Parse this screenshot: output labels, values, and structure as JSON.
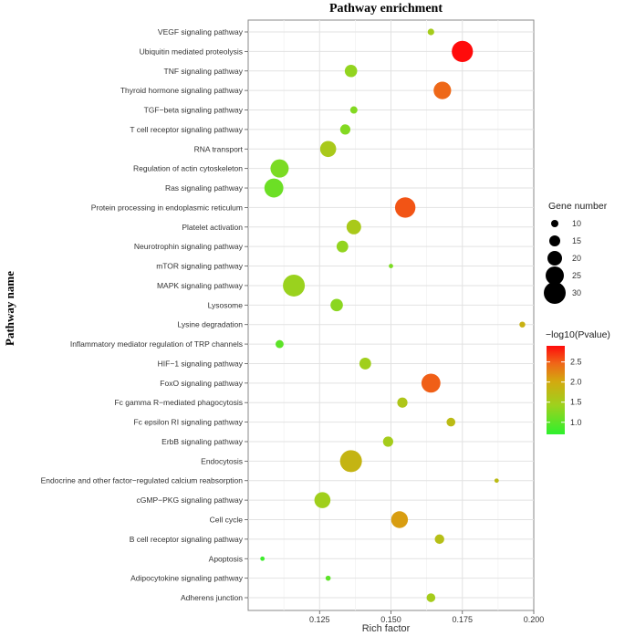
{
  "chart_data": {
    "type": "scatter",
    "title": "Pathway enrichment",
    "xlabel": "Rich factor",
    "ylabel": "Pathway name",
    "xlim": [
      0.1,
      0.2
    ],
    "xticks": [
      "0.125",
      "0.150",
      "0.175",
      "0.200"
    ],
    "grid": true,
    "size_legend": {
      "title": "Gene number",
      "values": [
        10,
        15,
        20,
        25,
        30
      ]
    },
    "color_legend": {
      "title": "−log10(Pvalue)",
      "ticks": [
        "2.5",
        "2.0",
        "1.5",
        "1.0"
      ],
      "range": [
        0.7,
        2.9
      ]
    },
    "points": [
      {
        "pathway": "VEGF signaling pathway",
        "rich_factor": 0.164,
        "gene_number": 9,
        "neg_log10_p": 1.5
      },
      {
        "pathway": "Ubiquitin mediated proteolysis",
        "rich_factor": 0.175,
        "gene_number": 29,
        "neg_log10_p": 2.95
      },
      {
        "pathway": "TNF signaling pathway",
        "rich_factor": 0.136,
        "gene_number": 17,
        "neg_log10_p": 1.35
      },
      {
        "pathway": "Thyroid hormone signaling pathway",
        "rich_factor": 0.168,
        "gene_number": 24,
        "neg_log10_p": 2.45
      },
      {
        "pathway": "TGF−beta signaling pathway",
        "rich_factor": 0.137,
        "gene_number": 10,
        "neg_log10_p": 1.25
      },
      {
        "pathway": "T cell receptor signaling pathway",
        "rich_factor": 0.134,
        "gene_number": 14,
        "neg_log10_p": 1.25
      },
      {
        "pathway": "RNA transport",
        "rich_factor": 0.128,
        "gene_number": 22,
        "neg_log10_p": 1.55
      },
      {
        "pathway": "Regulation of actin cytoskeleton",
        "rich_factor": 0.111,
        "gene_number": 25,
        "neg_log10_p": 1.2
      },
      {
        "pathway": "Ras signaling pathway",
        "rich_factor": 0.109,
        "gene_number": 26,
        "neg_log10_p": 1.1
      },
      {
        "pathway": "Protein processing in endoplasmic reticulum",
        "rich_factor": 0.155,
        "gene_number": 28,
        "neg_log10_p": 2.55
      },
      {
        "pathway": "Platelet activation",
        "rich_factor": 0.137,
        "gene_number": 20,
        "neg_log10_p": 1.55
      },
      {
        "pathway": "Neurotrophin signaling pathway",
        "rich_factor": 0.133,
        "gene_number": 16,
        "neg_log10_p": 1.35
      },
      {
        "pathway": "mTOR signaling pathway",
        "rich_factor": 0.15,
        "gene_number": 6,
        "neg_log10_p": 1.2
      },
      {
        "pathway": "MAPK signaling pathway",
        "rich_factor": 0.116,
        "gene_number": 30,
        "neg_log10_p": 1.4
      },
      {
        "pathway": "Lysosome",
        "rich_factor": 0.131,
        "gene_number": 17,
        "neg_log10_p": 1.3
      },
      {
        "pathway": "Lysine degradation",
        "rich_factor": 0.196,
        "gene_number": 8,
        "neg_log10_p": 1.9
      },
      {
        "pathway": "Inflammatory mediator regulation of TRP channels",
        "rich_factor": 0.111,
        "gene_number": 11,
        "neg_log10_p": 1.0
      },
      {
        "pathway": "HIF−1 signaling pathway",
        "rich_factor": 0.141,
        "gene_number": 16,
        "neg_log10_p": 1.45
      },
      {
        "pathway": "FoxO signaling pathway",
        "rich_factor": 0.164,
        "gene_number": 26,
        "neg_log10_p": 2.5
      },
      {
        "pathway": "Fc gamma R−mediated phagocytosis",
        "rich_factor": 0.154,
        "gene_number": 14,
        "neg_log10_p": 1.6
      },
      {
        "pathway": "Fc epsilon RI signaling pathway",
        "rich_factor": 0.171,
        "gene_number": 12,
        "neg_log10_p": 1.75
      },
      {
        "pathway": "ErbB signaling pathway",
        "rich_factor": 0.149,
        "gene_number": 14,
        "neg_log10_p": 1.5
      },
      {
        "pathway": "Endocytosis",
        "rich_factor": 0.136,
        "gene_number": 30,
        "neg_log10_p": 1.85
      },
      {
        "pathway": "Endocrine and other factor−regulated calcium reabsorption",
        "rich_factor": 0.187,
        "gene_number": 6,
        "neg_log10_p": 1.75
      },
      {
        "pathway": "cGMP−PKG signaling pathway",
        "rich_factor": 0.126,
        "gene_number": 22,
        "neg_log10_p": 1.45
      },
      {
        "pathway": "Cell cycle",
        "rich_factor": 0.153,
        "gene_number": 23,
        "neg_log10_p": 2.1
      },
      {
        "pathway": "B cell receptor signaling pathway",
        "rich_factor": 0.167,
        "gene_number": 13,
        "neg_log10_p": 1.7
      },
      {
        "pathway": "Apoptosis",
        "rich_factor": 0.105,
        "gene_number": 6,
        "neg_log10_p": 0.8
      },
      {
        "pathway": "Adipocytokine signaling pathway",
        "rich_factor": 0.128,
        "gene_number": 7,
        "neg_log10_p": 1.0
      },
      {
        "pathway": "Adherens junction",
        "rich_factor": 0.164,
        "gene_number": 12,
        "neg_log10_p": 1.5
      }
    ]
  }
}
